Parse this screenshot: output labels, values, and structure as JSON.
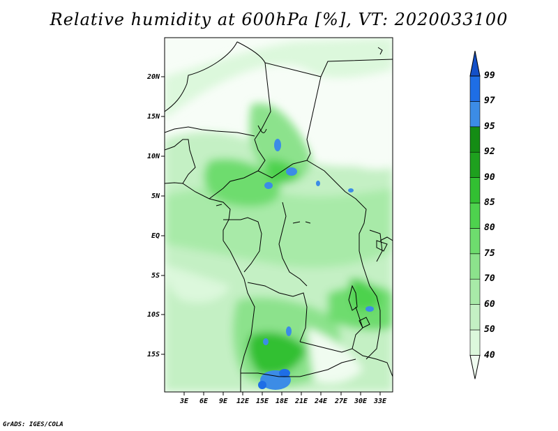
{
  "title": "Relative humidity at 600hPa [%], VT: 2020033100",
  "lat_labels": [
    "20N",
    "15N",
    "10N",
    "5N",
    "EQ",
    "5S",
    "10S",
    "15S"
  ],
  "lon_labels": [
    "3E",
    "6E",
    "9E",
    "12E",
    "15E",
    "18E",
    "21E",
    "24E",
    "27E",
    "30E",
    "33E"
  ],
  "colorbar": {
    "levels": [
      "40",
      "50",
      "60",
      "70",
      "75",
      "80",
      "85",
      "90",
      "92",
      "95",
      "97",
      "99"
    ],
    "colors": [
      "#f0fcf0",
      "#dcf8dc",
      "#c4f0c4",
      "#a8eaa8",
      "#8ce28c",
      "#6edc6e",
      "#4ed24e",
      "#32c032",
      "#1ea01e",
      "#148c14",
      "#3c8ce6",
      "#1e6ee6",
      "#1450c8"
    ]
  },
  "credit": "GrADS: IGES/COLA"
}
